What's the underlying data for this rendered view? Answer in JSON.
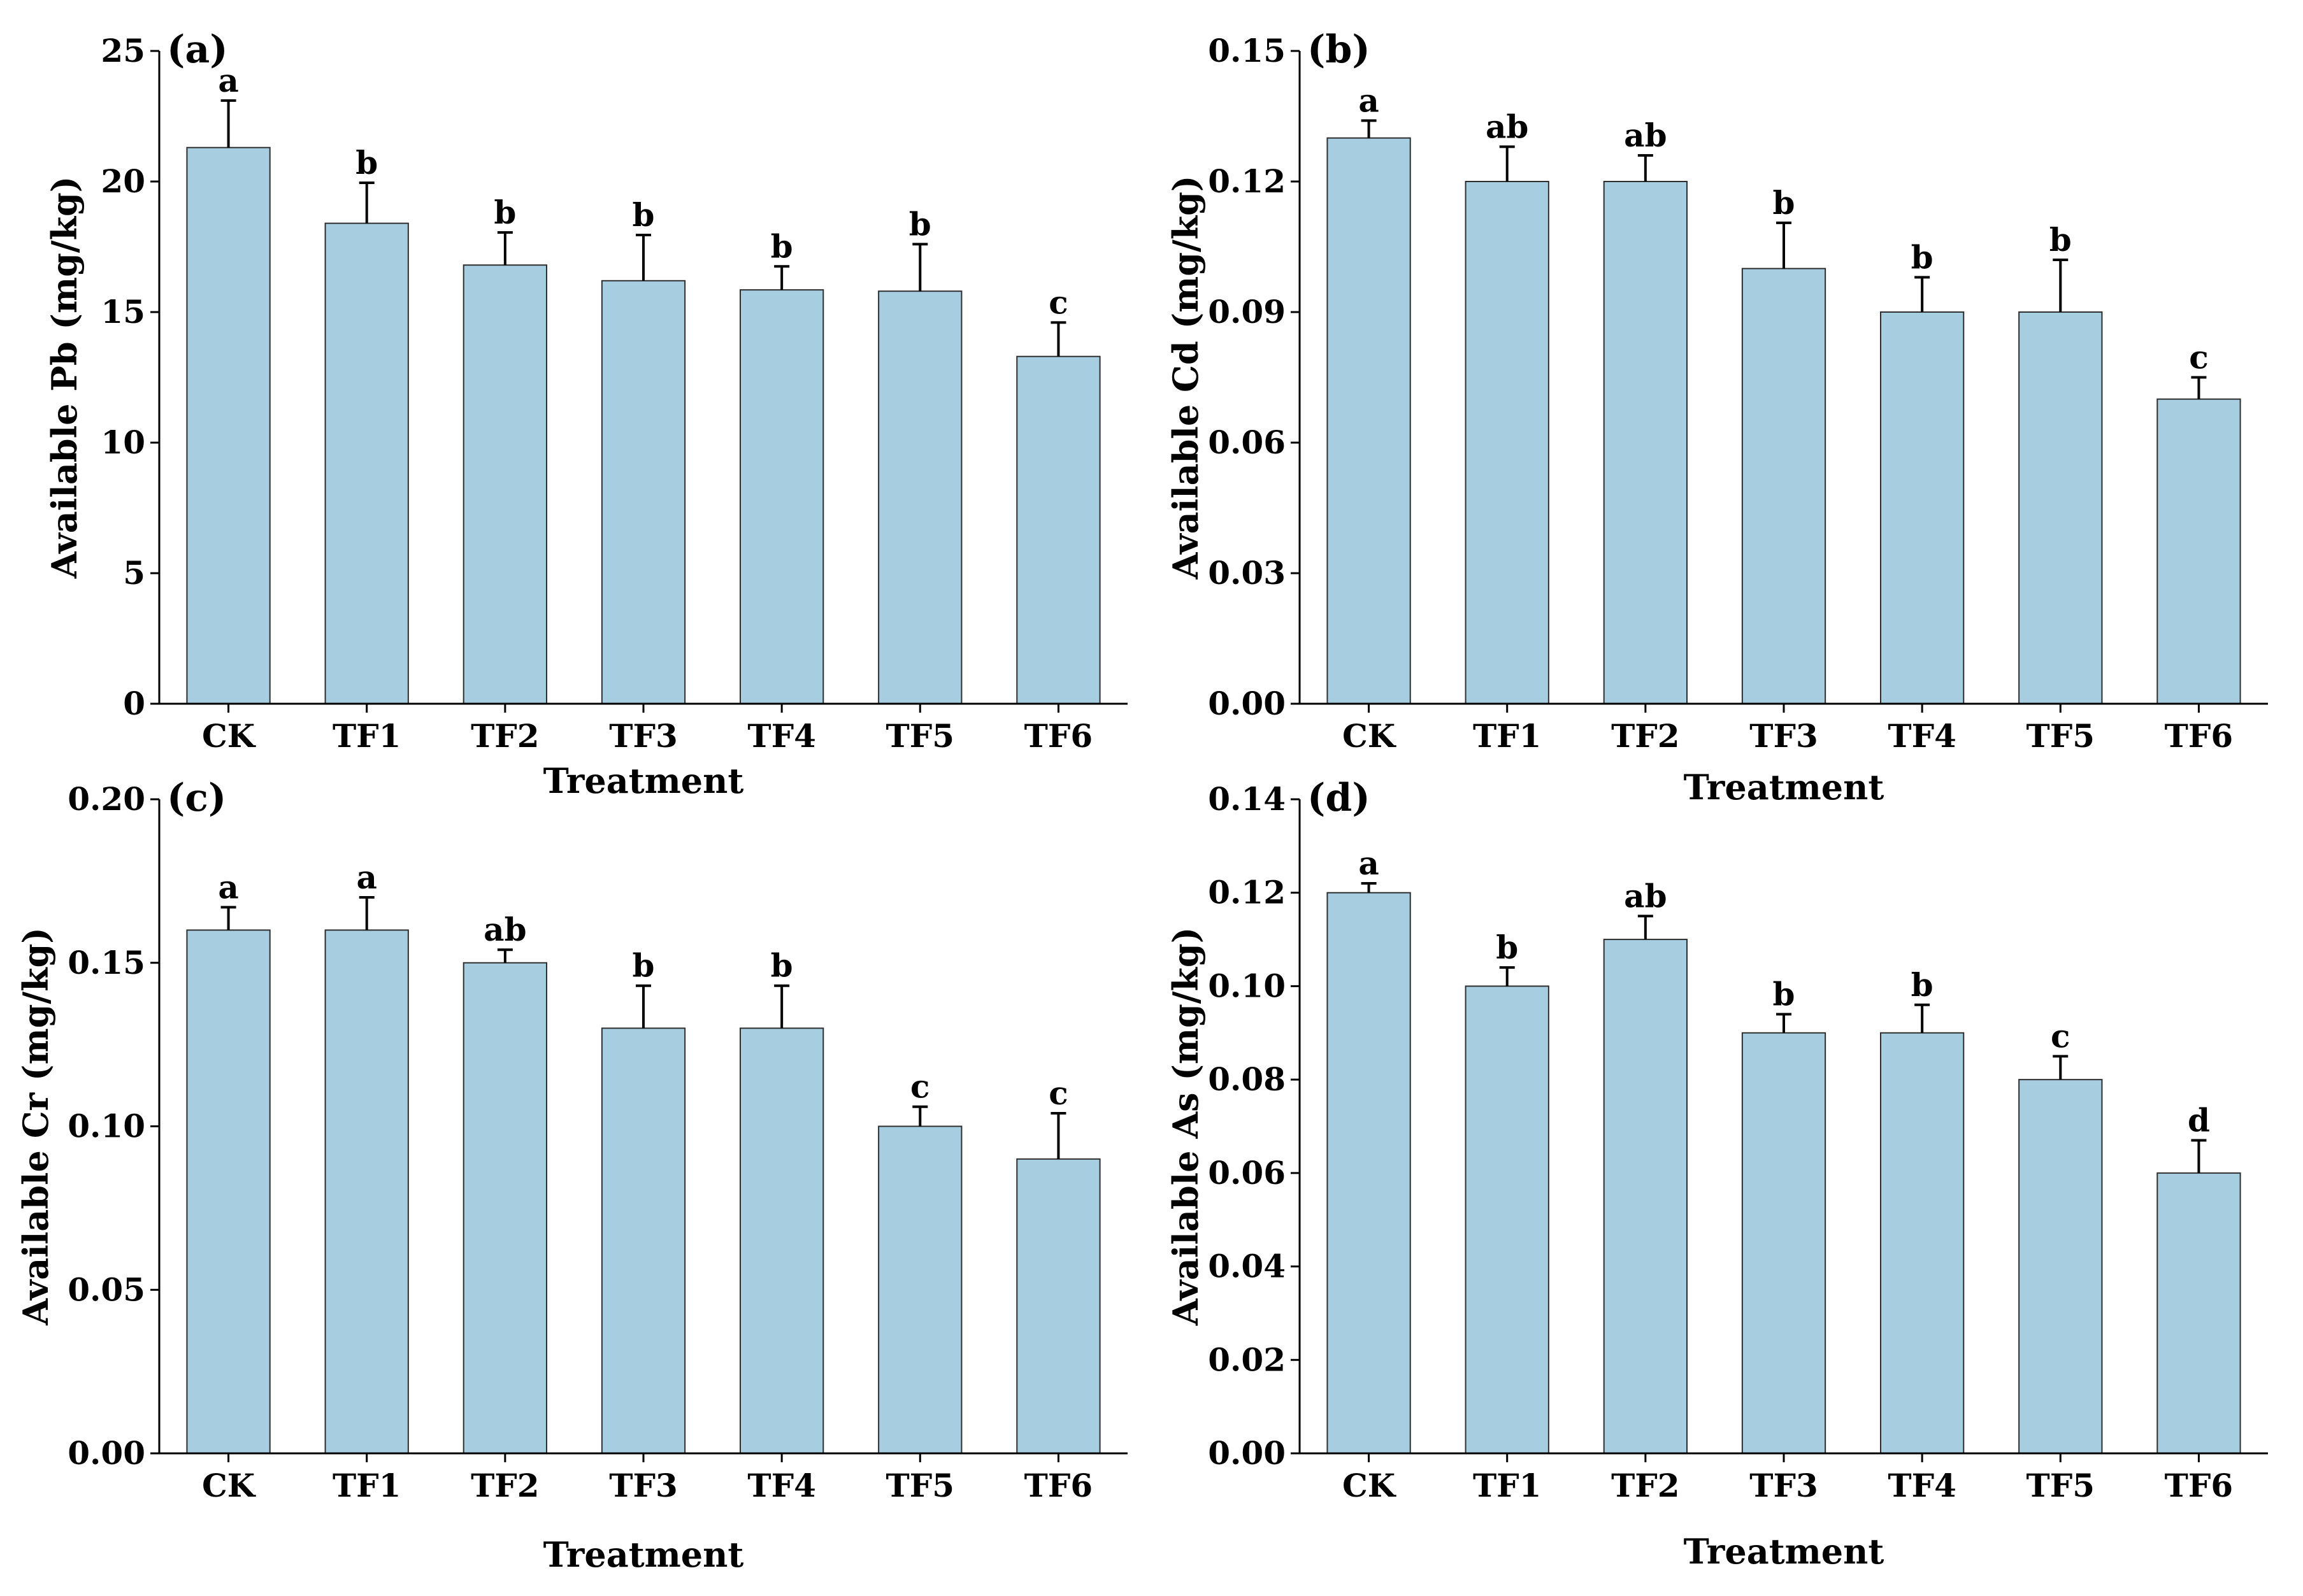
{
  "colors": {
    "bar_fill": "#a7cde1",
    "bar_stroke": "#2e2e2e",
    "axis": "#000000"
  },
  "chart_data": [
    {
      "type": "bar",
      "panel_label": "(a)",
      "title": "",
      "categories": [
        "CK",
        "TF1",
        "TF2",
        "TF3",
        "TF4",
        "TF5",
        "TF6"
      ],
      "values": [
        21.3,
        18.4,
        16.8,
        16.2,
        15.85,
        15.8,
        13.3
      ],
      "error": [
        1.8,
        1.55,
        1.25,
        1.75,
        0.9,
        1.8,
        1.3
      ],
      "significance": [
        "a",
        "b",
        "b",
        "b",
        "b",
        "b",
        "c"
      ],
      "ylim": [
        0,
        25
      ],
      "yticks": [
        "0",
        "5",
        "10",
        "15",
        "20",
        "25"
      ],
      "xlabel": "Treatment",
      "ylabel": "Available Pb (mg/kg)"
    },
    {
      "type": "bar",
      "panel_label": "(b)",
      "title": "",
      "categories": [
        "CK",
        "TF1",
        "TF2",
        "TF3",
        "TF4",
        "TF5",
        "TF6"
      ],
      "values": [
        0.13,
        0.12,
        0.12,
        0.1,
        0.09,
        0.09,
        0.07
      ],
      "error": [
        0.004,
        0.008,
        0.006,
        0.0105,
        0.008,
        0.012,
        0.005
      ],
      "significance": [
        "a",
        "ab",
        "ab",
        "b",
        "b",
        "b",
        "c"
      ],
      "ylim": [
        0,
        0.15
      ],
      "yticks": [
        "0.00",
        "0.03",
        "0.06",
        "0.09",
        "0.12",
        "0.15"
      ],
      "xlabel": "Treatment",
      "ylabel": "Available Cd (mg/kg)"
    },
    {
      "type": "bar",
      "panel_label": "(c)",
      "title": "",
      "categories": [
        "CK",
        "TF1",
        "TF2",
        "TF3",
        "TF4",
        "TF5",
        "TF6"
      ],
      "values": [
        0.16,
        0.16,
        0.15,
        0.13,
        0.13,
        0.1,
        0.09
      ],
      "error": [
        0.007,
        0.01,
        0.004,
        0.013,
        0.013,
        0.006,
        0.014
      ],
      "significance": [
        "a",
        "a",
        "ab",
        "b",
        "b",
        "c",
        "c"
      ],
      "ylim": [
        0,
        0.2
      ],
      "yticks": [
        "0.00",
        "0.05",
        "0.10",
        "0.15",
        "0.20"
      ],
      "xlabel": "Treatment",
      "ylabel": "Available Cr (mg/kg)"
    },
    {
      "type": "bar",
      "panel_label": "(d)",
      "title": "",
      "categories": [
        "CK",
        "TF1",
        "TF2",
        "TF3",
        "TF4",
        "TF5",
        "TF6"
      ],
      "values": [
        0.12,
        0.1,
        0.11,
        0.09,
        0.09,
        0.08,
        0.06
      ],
      "error": [
        0.002,
        0.004,
        0.005,
        0.004,
        0.006,
        0.005,
        0.007
      ],
      "significance": [
        "a",
        "b",
        "ab",
        "b",
        "b",
        "c",
        "d"
      ],
      "ylim": [
        0,
        0.14
      ],
      "yticks": [
        "0.00",
        "0.02",
        "0.04",
        "0.06",
        "0.08",
        "0.10",
        "0.12",
        "0.14"
      ],
      "xlabel": "Treatment",
      "ylabel": "Available As (mg/kg)"
    }
  ]
}
